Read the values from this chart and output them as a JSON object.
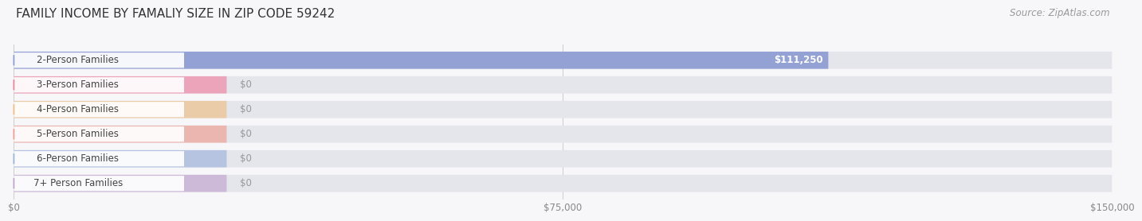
{
  "title": "FAMILY INCOME BY FAMALIY SIZE IN ZIP CODE 59242",
  "source": "Source: ZipAtlas.com",
  "categories": [
    "2-Person Families",
    "3-Person Families",
    "4-Person Families",
    "5-Person Families",
    "6-Person Families",
    "7+ Person Families"
  ],
  "values": [
    111250,
    0,
    0,
    0,
    0,
    0
  ],
  "bar_colors": [
    "#8090d0",
    "#f07090",
    "#f0b870",
    "#f09080",
    "#90a8d8",
    "#b898c8"
  ],
  "xlim": [
    0,
    150000
  ],
  "xticks": [
    0,
    75000,
    150000
  ],
  "xtick_labels": [
    "$0",
    "$75,000",
    "$150,000"
  ],
  "background_color": "#f7f7fa",
  "bar_background_color": "#e5e5ec",
  "title_fontsize": 11,
  "bar_label_fontsize": 8.5,
  "category_fontsize": 8.5,
  "source_fontsize": 8.5,
  "value_label_color": "white",
  "zero_label_color": "#999999",
  "category_text_color": "#444444",
  "title_color": "#333333",
  "source_color": "#999999"
}
